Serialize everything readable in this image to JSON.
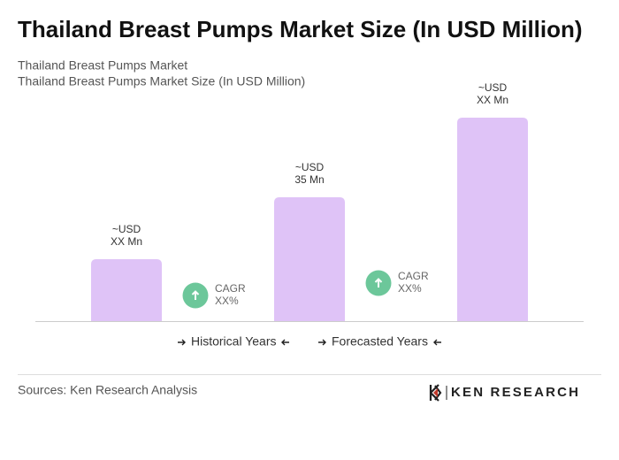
{
  "chart_data": {
    "type": "bar",
    "title": "Thailand Breast Pumps Market Size (In USD Million)",
    "subtitle": [
      "Thailand Breast Pumps Market",
      "Thailand Breast Pumps Market Size (In USD Million)"
    ],
    "categories": [
      null,
      null,
      null
    ],
    "values": [
      17.5,
      35,
      57.5
    ],
    "value_labels": [
      [
        "~USD",
        "XX Mn"
      ],
      [
        "~USD",
        "35 Mn"
      ],
      [
        "~USD",
        "XX Mn"
      ]
    ],
    "color": "#dfc3f7",
    "annotations": [
      [
        "CAGR",
        "XX%"
      ],
      [
        "CAGR",
        "XX%"
      ]
    ],
    "legend": [
      "Historical Years",
      "Forecasted Years"
    ],
    "source": "Sources: Ken Research Analysis",
    "logo": "KEN RESEARCH"
  }
}
